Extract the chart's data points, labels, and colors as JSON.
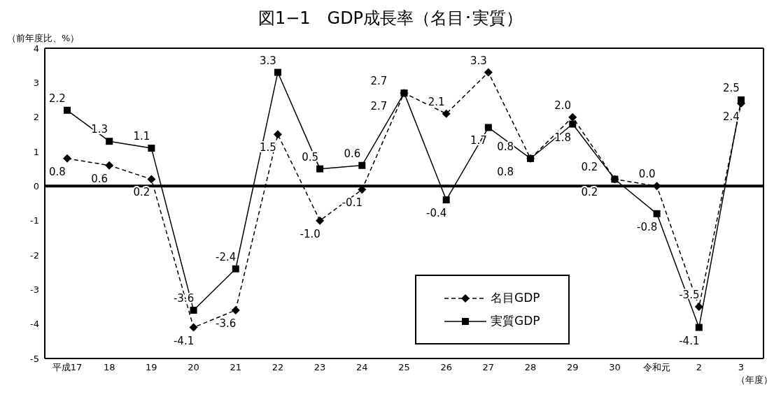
{
  "chart_data": {
    "type": "line",
    "title": "図1−1　GDP成長率（名目･実質）",
    "ylabel": "（前年度比、%）",
    "xlabel": "（年度）",
    "categories": [
      "平成17",
      "18",
      "19",
      "20",
      "21",
      "22",
      "23",
      "24",
      "25",
      "26",
      "27",
      "28",
      "29",
      "30",
      "令和元",
      "2",
      "3"
    ],
    "series": [
      {
        "name": "名目GDP",
        "color": "#000000",
        "marker": "diamond",
        "line_style": "dashed",
        "values": [
          0.8,
          0.6,
          0.2,
          -4.1,
          -3.6,
          1.5,
          -1.0,
          -0.1,
          2.7,
          2.1,
          3.3,
          0.8,
          2.0,
          0.2,
          0.0,
          -3.5,
          2.4
        ],
        "value_labels": [
          "0.8",
          "0.6",
          "0.2",
          "-4.1",
          "-3.6",
          "1.5",
          "-1.0",
          "-0.1",
          "2.7",
          "2.1",
          "3.3",
          "0.8",
          "2.0",
          "0.2",
          "0.0",
          "-3.5",
          "2.4"
        ]
      },
      {
        "name": "実質GDP",
        "color": "#000000",
        "marker": "square",
        "line_style": "solid",
        "values": [
          2.2,
          1.3,
          1.1,
          -3.6,
          -2.4,
          3.3,
          0.5,
          0.6,
          2.7,
          -0.4,
          1.7,
          0.8,
          1.8,
          0.2,
          -0.8,
          -4.1,
          2.5
        ],
        "value_labels": [
          "2.2",
          "1.3",
          "1.1",
          "-3.6",
          "-2.4",
          "3.3",
          "0.5",
          "0.6",
          "2.7",
          "-0.4",
          "1.7",
          "0.8",
          "1.8",
          "0.2",
          "-0.8",
          "-4.1",
          "2.5"
        ]
      }
    ],
    "ylim": [
      -5,
      4
    ],
    "yticks": [
      -5,
      -4,
      -3,
      -2,
      -1,
      0,
      1,
      2,
      3,
      4
    ],
    "grid": false,
    "legend": "bottom",
    "ref_lines": [
      {
        "axis": "y",
        "value": 0,
        "color": "#000000"
      }
    ]
  }
}
